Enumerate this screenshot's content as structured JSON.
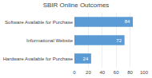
{
  "chart_data": {
    "type": "bar",
    "orientation": "horizontal",
    "title": "SBIR Online Outcomes",
    "categories": [
      "Hardware Available for Purchase",
      "Informational Website",
      "Software Available for Purchase"
    ],
    "values": [
      24,
      72,
      84
    ],
    "color": "#5b9bd5",
    "xlim": [
      0,
      100
    ],
    "xticks": [
      0,
      20,
      40,
      60,
      80,
      100
    ],
    "data_labels": true,
    "grid": true
  }
}
